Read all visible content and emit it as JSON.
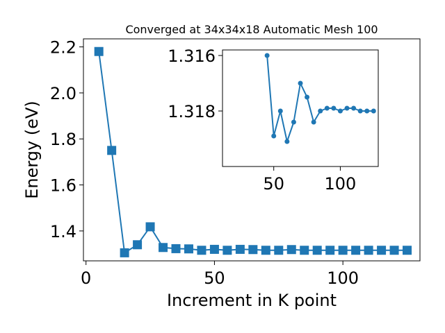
{
  "chart_data": [
    {
      "type": "line",
      "title": "Converged at 34x34x18 Automatic Mesh 100",
      "xlabel": "Increment in K point",
      "ylabel": "Energy (eV)",
      "xlim": [
        -1,
        130
      ],
      "ylim": [
        1.27,
        2.235
      ],
      "xticks": [
        0,
        50,
        100
      ],
      "yticks": [
        1.4,
        1.6,
        1.8,
        2.0,
        2.2
      ],
      "ytick_labels": [
        "1.4",
        "1.6",
        "1.8",
        "2.0",
        "2.2"
      ],
      "marker": "square",
      "color": "#1f77b4",
      "series": [
        {
          "x": [
            5,
            10,
            15,
            20,
            25,
            30,
            35,
            40,
            45,
            50,
            55,
            60,
            65,
            70,
            75,
            80,
            85,
            90,
            95,
            100,
            105,
            110,
            115,
            120,
            125
          ],
          "y": [
            2.18,
            1.75,
            1.305,
            1.34,
            1.418,
            1.328,
            1.323,
            1.322,
            1.316,
            1.32,
            1.316,
            1.32,
            1.319,
            1.316,
            1.316,
            1.319,
            1.316,
            1.316,
            1.316,
            1.316,
            1.316,
            1.316,
            1.316,
            1.316,
            1.316
          ]
        }
      ]
    },
    {
      "type": "line",
      "role": "inset",
      "title": "",
      "xlabel": "",
      "ylabel": "",
      "xlim": [
        11.5,
        128.5
      ],
      "ylim": [
        1.32,
        1.3158
      ],
      "inverted_y": true,
      "xticks": [
        50,
        100
      ],
      "yticks": [
        1.316,
        1.318
      ],
      "ytick_labels": [
        "1.316",
        "1.318"
      ],
      "marker": "circle",
      "color": "#1f77b4",
      "series": [
        {
          "x": [
            45,
            50,
            55,
            60,
            65,
            70,
            75,
            80,
            85,
            90,
            95,
            100,
            105,
            110,
            115,
            120,
            125
          ],
          "y": [
            1.316,
            1.3189,
            1.318,
            1.3191,
            1.3184,
            1.317,
            1.3175,
            1.3184,
            1.318,
            1.3179,
            1.3179,
            1.318,
            1.3179,
            1.3179,
            1.318,
            1.318,
            1.318
          ]
        }
      ]
    }
  ]
}
